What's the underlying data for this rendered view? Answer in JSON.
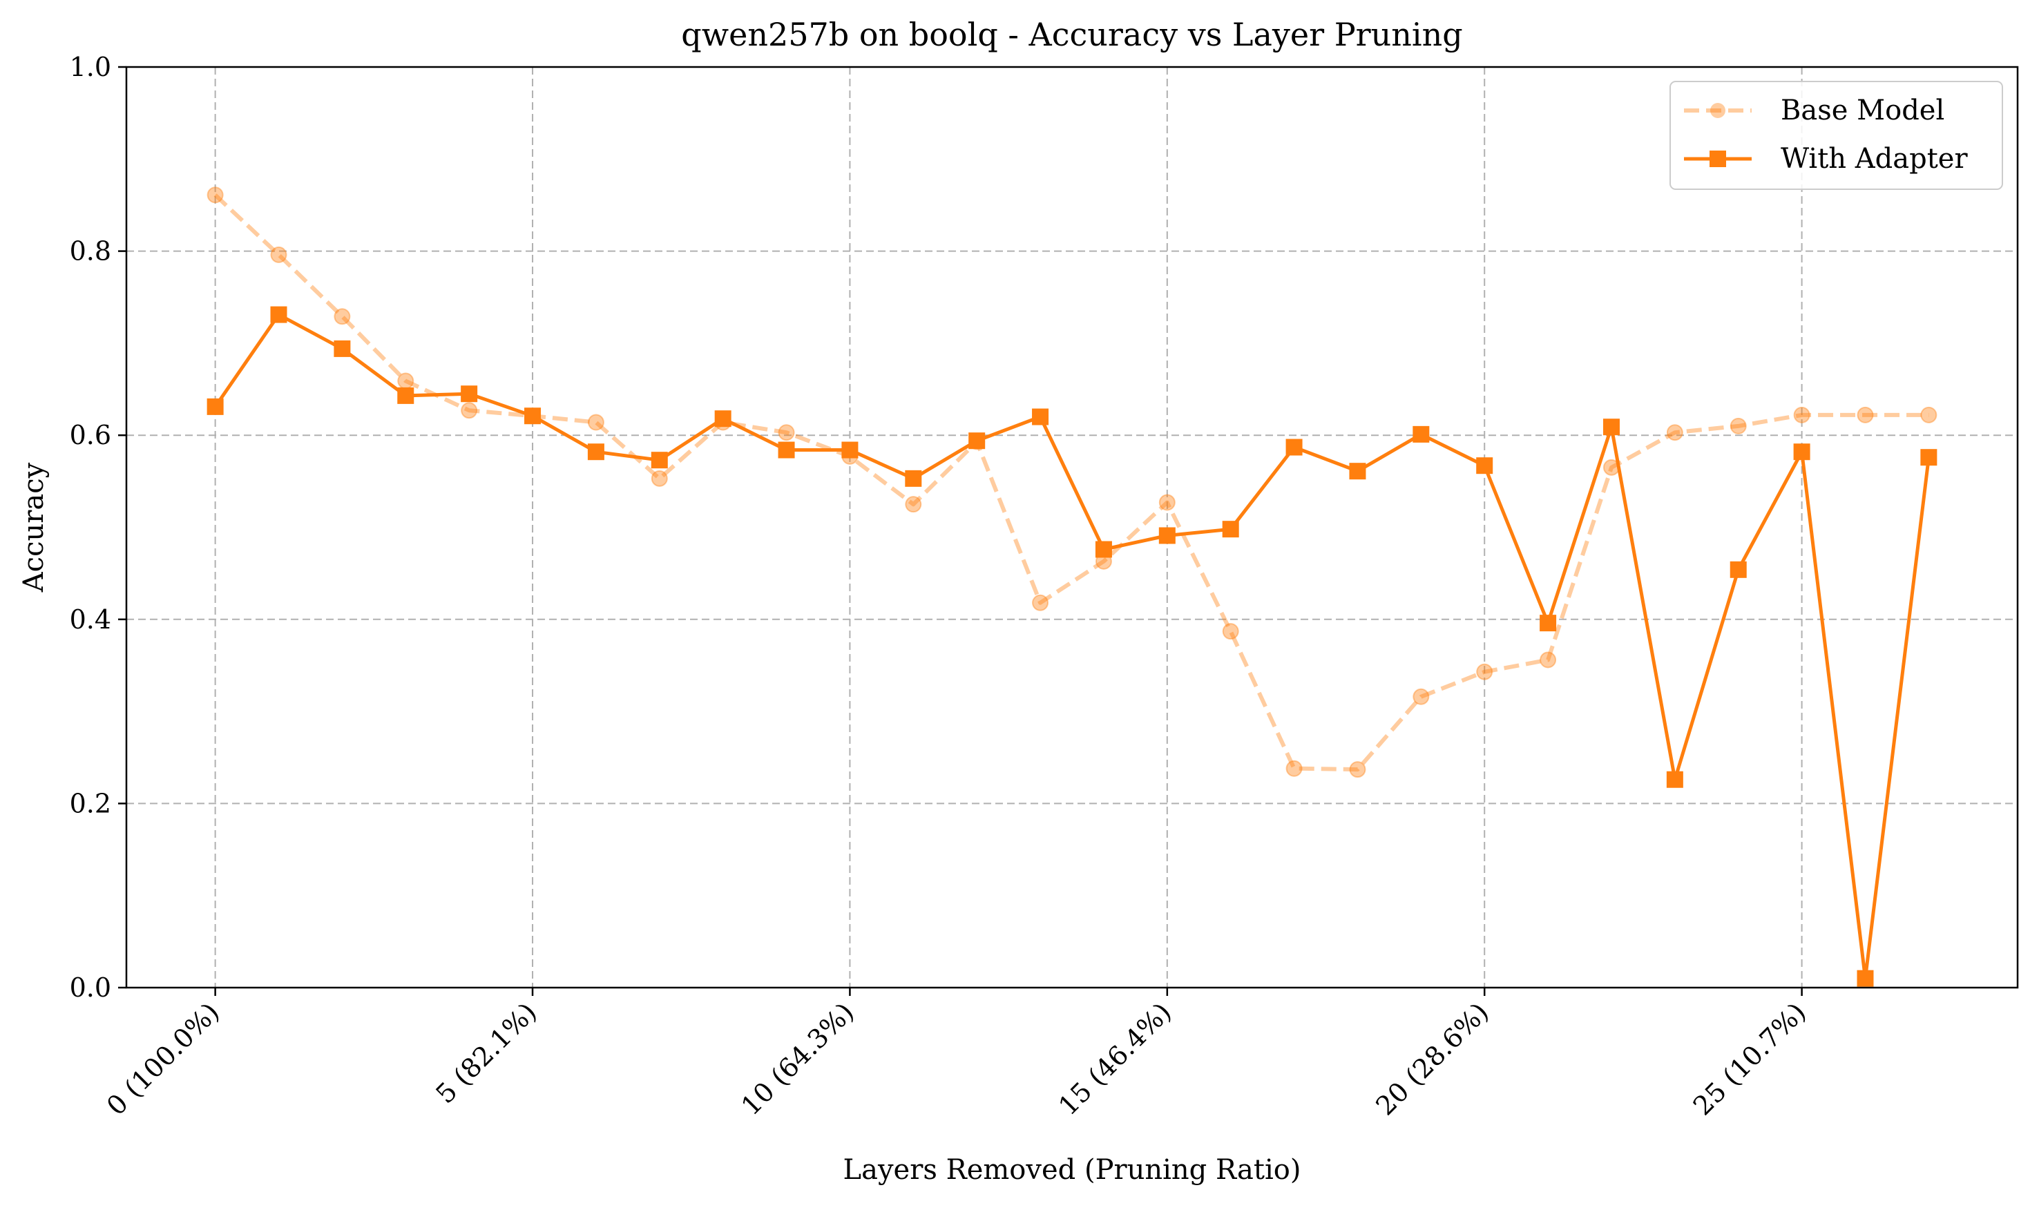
{
  "chart_data": {
    "type": "line",
    "title": "qwen257b on boolq - Accuracy vs Layer Pruning",
    "xlabel": "Layers Removed (Pruning Ratio)",
    "ylabel": "Accuracy",
    "xlim": [
      -1.4,
      28.4
    ],
    "ylim": [
      0.0,
      1.0
    ],
    "x": [
      0,
      1,
      2,
      3,
      4,
      5,
      6,
      7,
      8,
      9,
      10,
      11,
      12,
      13,
      14,
      15,
      16,
      17,
      18,
      19,
      20,
      21,
      22,
      23,
      24,
      25,
      26,
      27
    ],
    "xticks": [
      {
        "value": 0,
        "label": "0 (100.0%)"
      },
      {
        "value": 5,
        "label": "5 (82.1%)"
      },
      {
        "value": 10,
        "label": "10 (64.3%)"
      },
      {
        "value": 15,
        "label": "15 (46.4%)"
      },
      {
        "value": 20,
        "label": "20 (28.6%)"
      },
      {
        "value": 25,
        "label": "25 (10.7%)"
      }
    ],
    "yticks": [
      {
        "value": 0.0,
        "label": "0.0"
      },
      {
        "value": 0.2,
        "label": "0.2"
      },
      {
        "value": 0.4,
        "label": "0.4"
      },
      {
        "value": 0.6,
        "label": "0.6"
      },
      {
        "value": 0.8,
        "label": "0.8"
      },
      {
        "value": 1.0,
        "label": "1.0"
      }
    ],
    "grid": true,
    "legend_position": "top-right",
    "series": [
      {
        "name": "Base Model",
        "color": "#ff7f0e",
        "opacity": 0.4,
        "line_style": "dashed",
        "marker": "circle",
        "values": [
          0.861,
          0.796,
          0.729,
          0.659,
          0.627,
          0.621,
          0.614,
          0.553,
          0.614,
          0.603,
          0.577,
          0.525,
          0.593,
          0.418,
          0.463,
          0.527,
          0.387,
          0.238,
          0.237,
          0.316,
          0.343,
          0.356,
          0.565,
          0.603,
          0.61,
          0.622,
          0.622,
          0.622
        ]
      },
      {
        "name": "With Adapter",
        "color": "#ff7f0e",
        "opacity": 1.0,
        "line_style": "solid",
        "marker": "square",
        "values": [
          0.631,
          0.731,
          0.694,
          0.643,
          0.645,
          0.621,
          0.582,
          0.573,
          0.618,
          0.584,
          0.584,
          0.553,
          0.594,
          0.62,
          0.476,
          0.491,
          0.498,
          0.587,
          0.561,
          0.601,
          0.567,
          0.396,
          0.609,
          0.226,
          0.454,
          0.582,
          0.01,
          0.576
        ]
      }
    ]
  }
}
